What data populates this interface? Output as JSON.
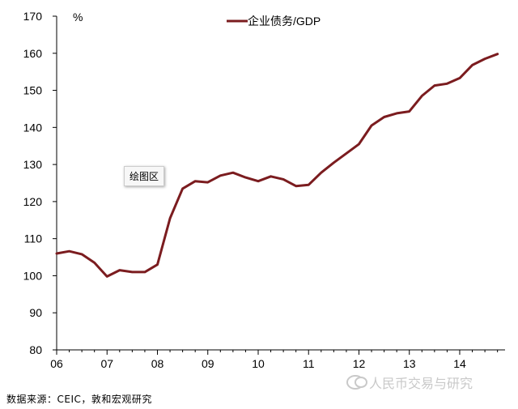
{
  "chart_data": {
    "type": "line",
    "unit_label": "%",
    "legend_position": "top",
    "grid": false,
    "x_tick_labels": [
      "06",
      "07",
      "08",
      "09",
      "10",
      "11",
      "12",
      "13",
      "14"
    ],
    "y_ticks": [
      80,
      90,
      100,
      110,
      120,
      130,
      140,
      150,
      160,
      170
    ],
    "ylim": [
      80,
      170
    ],
    "x_domain": [
      2006.0,
      2014.9
    ],
    "series": [
      {
        "name": "企业债务/GDP",
        "color": "#7b1c1f",
        "x": [
          2006.0,
          2006.25,
          2006.5,
          2006.75,
          2007.0,
          2007.25,
          2007.5,
          2007.75,
          2008.0,
          2008.25,
          2008.5,
          2008.75,
          2009.0,
          2009.25,
          2009.5,
          2009.75,
          2010.0,
          2010.25,
          2010.5,
          2010.75,
          2011.0,
          2011.25,
          2011.5,
          2011.75,
          2012.0,
          2012.25,
          2012.5,
          2012.75,
          2013.0,
          2013.25,
          2013.5,
          2013.75,
          2014.0,
          2014.25,
          2014.5,
          2014.75
        ],
        "values": [
          106.0,
          106.6,
          105.8,
          103.5,
          99.8,
          101.5,
          101.0,
          101.0,
          103.0,
          115.5,
          123.5,
          125.5,
          125.2,
          127.0,
          127.8,
          126.5,
          125.5,
          126.8,
          126.0,
          124.2,
          124.5,
          127.8,
          130.5,
          133.0,
          135.5,
          140.5,
          142.8,
          143.8,
          144.3,
          148.5,
          151.3,
          151.8,
          153.3,
          156.8,
          158.5,
          159.8
        ]
      }
    ]
  },
  "tooltip_text": "绘图区",
  "source_text": "数据来源：CEIC，敦和宏观研究",
  "watermark_text": "人民币交易与研究"
}
